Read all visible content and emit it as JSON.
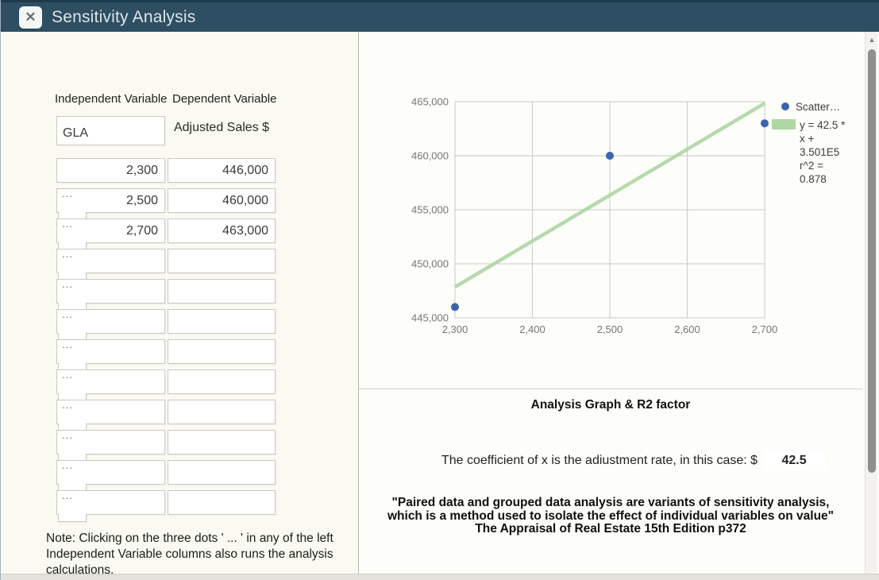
{
  "window": {
    "title": "Sensitivity Analysis",
    "close_glyph": "✕"
  },
  "left_panel": {
    "headers": {
      "independent": "Independent Variable",
      "dependent": "Dependent Variable"
    },
    "variable_name": "GLA",
    "dependent_label": "Adjusted Sales $",
    "dots_label": "...",
    "rows": [
      {
        "independent": "2,300",
        "dependent": "446,000",
        "has_dots": false
      },
      {
        "independent": "2,500",
        "dependent": "460,000",
        "has_dots": true
      },
      {
        "independent": "2,700",
        "dependent": "463,000",
        "has_dots": true
      },
      {
        "independent": "",
        "dependent": "",
        "has_dots": true
      },
      {
        "independent": "",
        "dependent": "",
        "has_dots": true
      },
      {
        "independent": "",
        "dependent": "",
        "has_dots": true
      },
      {
        "independent": "",
        "dependent": "",
        "has_dots": true
      },
      {
        "independent": "",
        "dependent": "",
        "has_dots": true
      },
      {
        "independent": "",
        "dependent": "",
        "has_dots": true
      },
      {
        "independent": "",
        "dependent": "",
        "has_dots": true
      },
      {
        "independent": "",
        "dependent": "",
        "has_dots": true
      },
      {
        "independent": "",
        "dependent": "",
        "has_dots": true
      }
    ],
    "note_lines": [
      "Note: Clicking on the three dots ' ... ' in any of the left",
      "Independent Variable columns also runs the analysis",
      "calculations,"
    ]
  },
  "chart_data": {
    "type": "scatter",
    "title": "",
    "xlabel": "",
    "ylabel": "",
    "points": [
      [
        2300,
        446000
      ],
      [
        2500,
        460000
      ],
      [
        2700,
        463000
      ]
    ],
    "xlim": [
      2300,
      2700
    ],
    "ylim": [
      445000,
      465000
    ],
    "x_ticks": [
      {
        "v": 2300,
        "label": "2,300"
      },
      {
        "v": 2400,
        "label": "2,400"
      },
      {
        "v": 2500,
        "label": "2,500"
      },
      {
        "v": 2600,
        "label": "2,600"
      },
      {
        "v": 2700,
        "label": "2,700"
      }
    ],
    "y_ticks": [
      {
        "v": 445000,
        "label": "445,000"
      },
      {
        "v": 450000,
        "label": "450,000"
      },
      {
        "v": 455000,
        "label": "455,000"
      },
      {
        "v": 460000,
        "label": "460,000"
      },
      {
        "v": 465000,
        "label": "465,000"
      }
    ],
    "grid": true,
    "grid_color": "#c9c9c7",
    "point_color": "#3d64ad",
    "trendline": {
      "slope": 42.5,
      "intercept": 350100,
      "r_squared": 0.878,
      "color": "#aed7a4",
      "equation_display": "y = 42.5 * x + 3.501E5",
      "r2_display": "r^2 = 0.878"
    },
    "legend": {
      "position": "right",
      "scatter_label": "Scatter…",
      "trend_label_lines": [
        "y = 42.5 *",
        "x +",
        "3.501E5",
        "r^2 =",
        "0.878"
      ]
    }
  },
  "right_panel": {
    "section_title": "Analysis Graph & R2 factor",
    "coefficient_label": "The coefficient of x is the adiustment rate, in this case: $",
    "coefficient_value": "42.5",
    "quote_lines": [
      "\"Paired data and grouped data analysis are variants of sensitivity analysis,",
      "which is a method used to isolate the effect of individual variables on value\"",
      "The Appraisal of Real Estate 15th Edition p372"
    ]
  }
}
